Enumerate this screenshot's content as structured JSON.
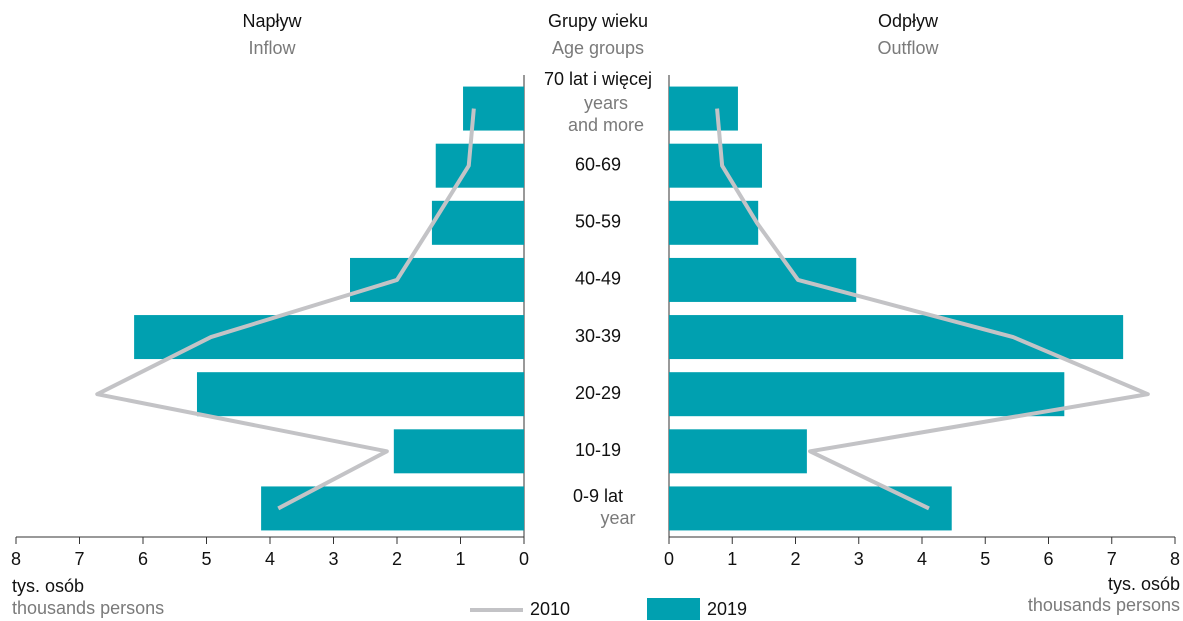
{
  "center": {
    "title": "Grupy wieku",
    "subtitle": "Age groups",
    "categories": [
      "70 lat i więcej",
      "60-69",
      "50-59",
      "40-49",
      "30-39",
      "20-29",
      "10-19",
      "0-9 lat"
    ],
    "category_notes": [
      [
        "years",
        "and more"
      ],
      null,
      null,
      null,
      null,
      null,
      null,
      [
        "year"
      ]
    ]
  },
  "chart_data": [
    {
      "type": "bar",
      "orientation": "horizontal",
      "reversed": true,
      "title": "Napływ",
      "subtitle": "Inflow",
      "xlabel": "tys. osób",
      "xlabel_sub": "thousands persons",
      "xlim": [
        0,
        8
      ],
      "xticks": [
        0,
        1,
        2,
        3,
        4,
        5,
        6,
        7,
        8
      ],
      "series": [
        {
          "name": "2010",
          "kind": "line",
          "color": "#c3c3c6",
          "values": [
            0.79,
            0.87,
            1.43,
            2.0,
            4.93,
            6.72,
            2.16,
            3.87
          ]
        },
        {
          "name": "2019",
          "kind": "bar",
          "color": "#00a0b0",
          "values": [
            0.96,
            1.39,
            1.45,
            2.74,
            6.14,
            5.15,
            2.05,
            4.14
          ]
        }
      ]
    },
    {
      "type": "bar",
      "orientation": "horizontal",
      "reversed": false,
      "title": "Odpływ",
      "subtitle": "Outflow",
      "xlabel": "tys. osób",
      "xlabel_sub": "thousands persons",
      "xlim": [
        0,
        8
      ],
      "xticks": [
        0,
        1,
        2,
        3,
        4,
        5,
        6,
        7,
        8
      ],
      "series": [
        {
          "name": "2010",
          "kind": "line",
          "color": "#c3c3c6",
          "values": [
            0.76,
            0.84,
            1.39,
            2.04,
            5.44,
            7.57,
            2.23,
            4.11
          ]
        },
        {
          "name": "2019",
          "kind": "bar",
          "color": "#00a0b0",
          "values": [
            1.09,
            1.47,
            1.41,
            2.96,
            7.18,
            6.25,
            2.18,
            4.47
          ]
        }
      ]
    }
  ]
}
